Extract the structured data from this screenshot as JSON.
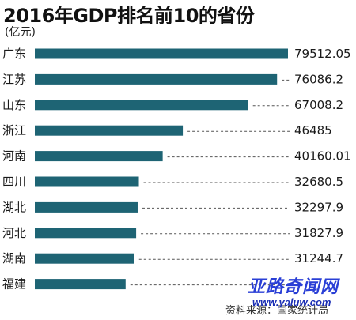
{
  "chart_data": {
    "type": "bar",
    "orientation": "horizontal",
    "title": "2016年GDP排名前10的省份",
    "unit_label": "(亿元)",
    "categories": [
      "广东",
      "江苏",
      "山东",
      "浙江",
      "河南",
      "四川",
      "湖北",
      "河北",
      "湖南",
      "福建"
    ],
    "values": [
      79512.05,
      76086.2,
      67008.2,
      46485,
      40160.01,
      32680.5,
      32297.9,
      31827.9,
      31244.7,
      28519.15
    ],
    "value_labels": [
      "79512.05",
      "76086.2",
      "67008.2",
      "46485",
      "40160.01",
      "32680.5",
      "32297.9",
      "31827.9",
      "31244.7",
      ""
    ],
    "xlim": [
      0,
      79512.05
    ],
    "bar_color": "#1e6474",
    "grid": false,
    "legend": "none",
    "source": "资料来源：国家统计局"
  },
  "watermark": {
    "text": "亚路奇闻网",
    "url": "www.yaluw.com"
  }
}
